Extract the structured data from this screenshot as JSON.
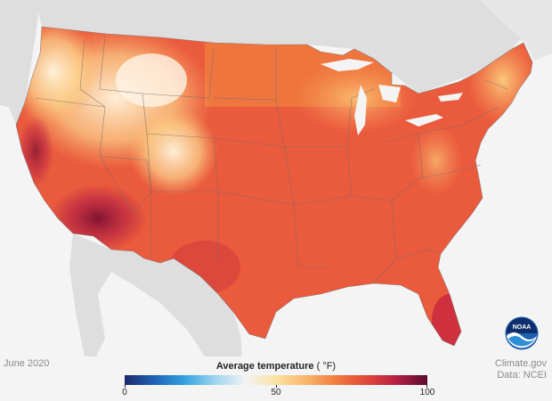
{
  "date": "June 2020",
  "legend": {
    "title": "Average temperature",
    "unit": "( °F)",
    "min": "0",
    "mid": "50",
    "max": "100"
  },
  "credits": {
    "line1": "Climate.gov",
    "line2": "Data: NCEI"
  },
  "logo": {
    "text": "NOAA"
  },
  "colors": {
    "land_background": "#dedede",
    "ocean": "#f4f4f4",
    "scale": [
      "#1b2a6b",
      "#1f63b8",
      "#35a3e0",
      "#9fd6ee",
      "#f3f3f3",
      "#fbe3a4",
      "#f9b56b",
      "#f07a3e",
      "#e0483a",
      "#b61f45",
      "#5b0b2e"
    ],
    "state_border": "#7a6c6a"
  }
}
